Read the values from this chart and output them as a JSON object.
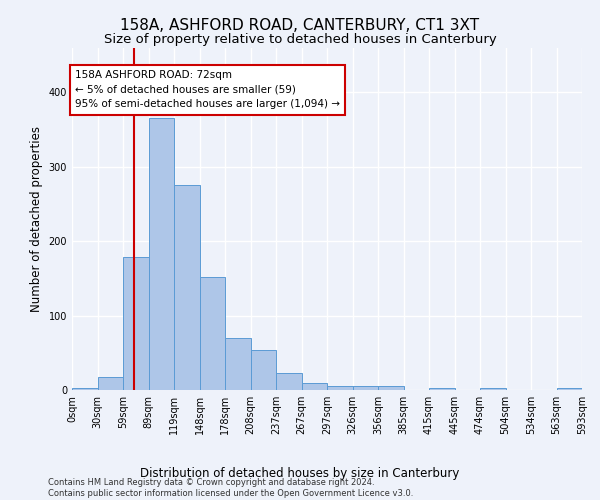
{
  "title": "158A, ASHFORD ROAD, CANTERBURY, CT1 3XT",
  "subtitle": "Size of property relative to detached houses in Canterbury",
  "xlabel": "Distribution of detached houses by size in Canterbury",
  "ylabel": "Number of detached properties",
  "footer_line1": "Contains HM Land Registry data © Crown copyright and database right 2024.",
  "footer_line2": "Contains public sector information licensed under the Open Government Licence v3.0.",
  "bar_color": "#aec6e8",
  "bar_edge_color": "#5b9bd5",
  "annotation_box_color": "#cc0000",
  "annotation_line_color": "#cc0000",
  "annotation_text": "158A ASHFORD ROAD: 72sqm\n← 5% of detached houses are smaller (59)\n95% of semi-detached houses are larger (1,094) →",
  "ylim": [
    0,
    460
  ],
  "background_color": "#eef2fa",
  "grid_color": "#ffffff",
  "title_fontsize": 11,
  "subtitle_fontsize": 9.5,
  "axis_label_fontsize": 8.5,
  "tick_fontsize": 7,
  "annotation_fontsize": 7.5,
  "footer_fontsize": 6,
  "bar_heights": [
    3,
    17,
    178,
    365,
    275,
    152,
    70,
    54,
    23,
    10,
    5,
    6,
    6,
    0,
    3,
    0,
    3,
    0,
    0,
    3
  ],
  "tick_labels": [
    "0sqm",
    "30sqm",
    "59sqm",
    "89sqm",
    "119sqm",
    "148sqm",
    "178sqm",
    "208sqm",
    "237sqm",
    "267sqm",
    "297sqm",
    "326sqm",
    "356sqm",
    "385sqm",
    "415sqm",
    "445sqm",
    "474sqm",
    "504sqm",
    "534sqm",
    "563sqm",
    "593sqm"
  ]
}
